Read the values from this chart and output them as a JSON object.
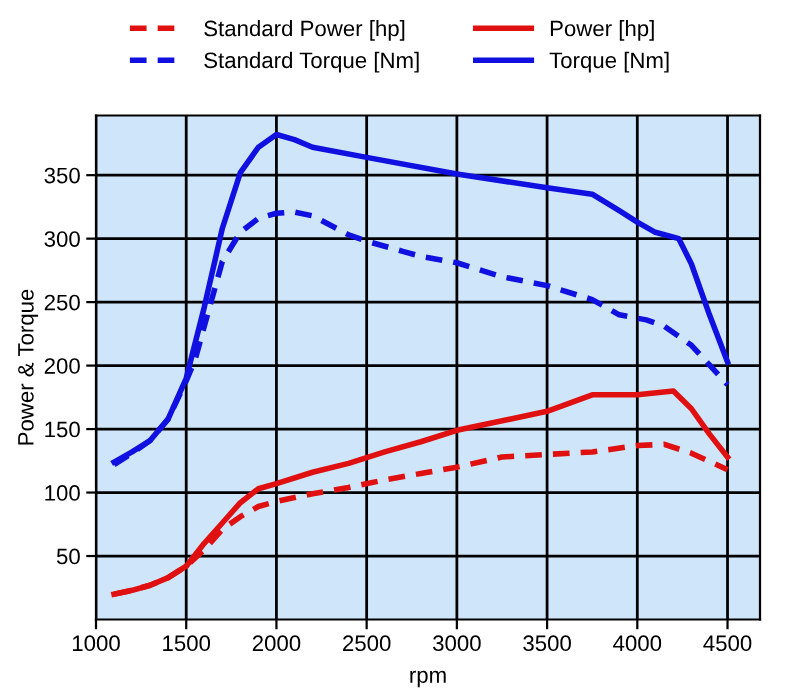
{
  "chart_data": {
    "type": "line",
    "xlabel": "rpm",
    "ylabel": "Power & Torque",
    "xlim": [
      1000,
      4680
    ],
    "ylim": [
      0,
      397
    ],
    "xticks": [
      1000,
      1500,
      2000,
      2500,
      3000,
      3500,
      4000,
      4500
    ],
    "yticks": [
      50,
      100,
      150,
      200,
      250,
      300,
      350
    ],
    "grid": true,
    "legend": "top",
    "marker": "none",
    "series": [
      {
        "name": "Standard Power [hp]",
        "color": "#e01010",
        "line_style": "dashed",
        "x": [
          1100,
          1200,
          1300,
          1400,
          1500,
          1600,
          1700,
          1800,
          1900,
          2000,
          2200,
          2400,
          2600,
          2800,
          3000,
          3250,
          3500,
          3750,
          4000,
          4150,
          4300,
          4500
        ],
        "values": [
          20,
          23,
          27,
          33,
          42,
          55,
          71,
          81,
          89,
          93,
          99,
          104,
          110,
          115,
          120,
          128,
          130,
          132,
          137,
          138,
          131,
          118
        ]
      },
      {
        "name": "Standard Torque [Nm]",
        "color": "#1010e0",
        "line_style": "dashed",
        "x": [
          1100,
          1200,
          1300,
          1400,
          1500,
          1550,
          1600,
          1700,
          1800,
          1900,
          2000,
          2100,
          2200,
          2400,
          2500,
          2700,
          2800,
          3000,
          3250,
          3500,
          3750,
          3900,
          4050,
          4150,
          4300,
          4500
        ],
        "values": [
          122,
          131,
          141,
          158,
          188,
          205,
          231,
          282,
          305,
          316,
          320,
          321,
          318,
          303,
          298,
          290,
          286,
          281,
          270,
          263,
          252,
          240,
          236,
          231,
          216,
          185
        ]
      },
      {
        "name": "Power [hp]",
        "color": "#e01010",
        "line_style": "solid",
        "x": [
          1100,
          1200,
          1300,
          1400,
          1500,
          1600,
          1700,
          1800,
          1900,
          2000,
          2200,
          2400,
          2600,
          2800,
          3000,
          3500,
          3750,
          4000,
          4200,
          4300,
          4400,
          4500
        ],
        "values": [
          20,
          23,
          27,
          33,
          42,
          60,
          76,
          92,
          103,
          107,
          116,
          123,
          132,
          140,
          149,
          164,
          177,
          177,
          180,
          166,
          146,
          128
        ]
      },
      {
        "name": "Torque [Nm]",
        "color": "#1010e0",
        "line_style": "solid",
        "x": [
          1100,
          1200,
          1300,
          1400,
          1500,
          1600,
          1700,
          1800,
          1900,
          2000,
          2100,
          2200,
          2500,
          3000,
          3500,
          3750,
          3900,
          4000,
          4100,
          4230,
          4300,
          4400,
          4500
        ],
        "values": [
          124,
          132,
          141,
          158,
          190,
          246,
          308,
          352,
          372,
          382,
          378,
          372,
          364,
          351,
          340,
          335,
          322,
          313,
          305,
          300,
          280,
          240,
          203
        ]
      }
    ]
  }
}
